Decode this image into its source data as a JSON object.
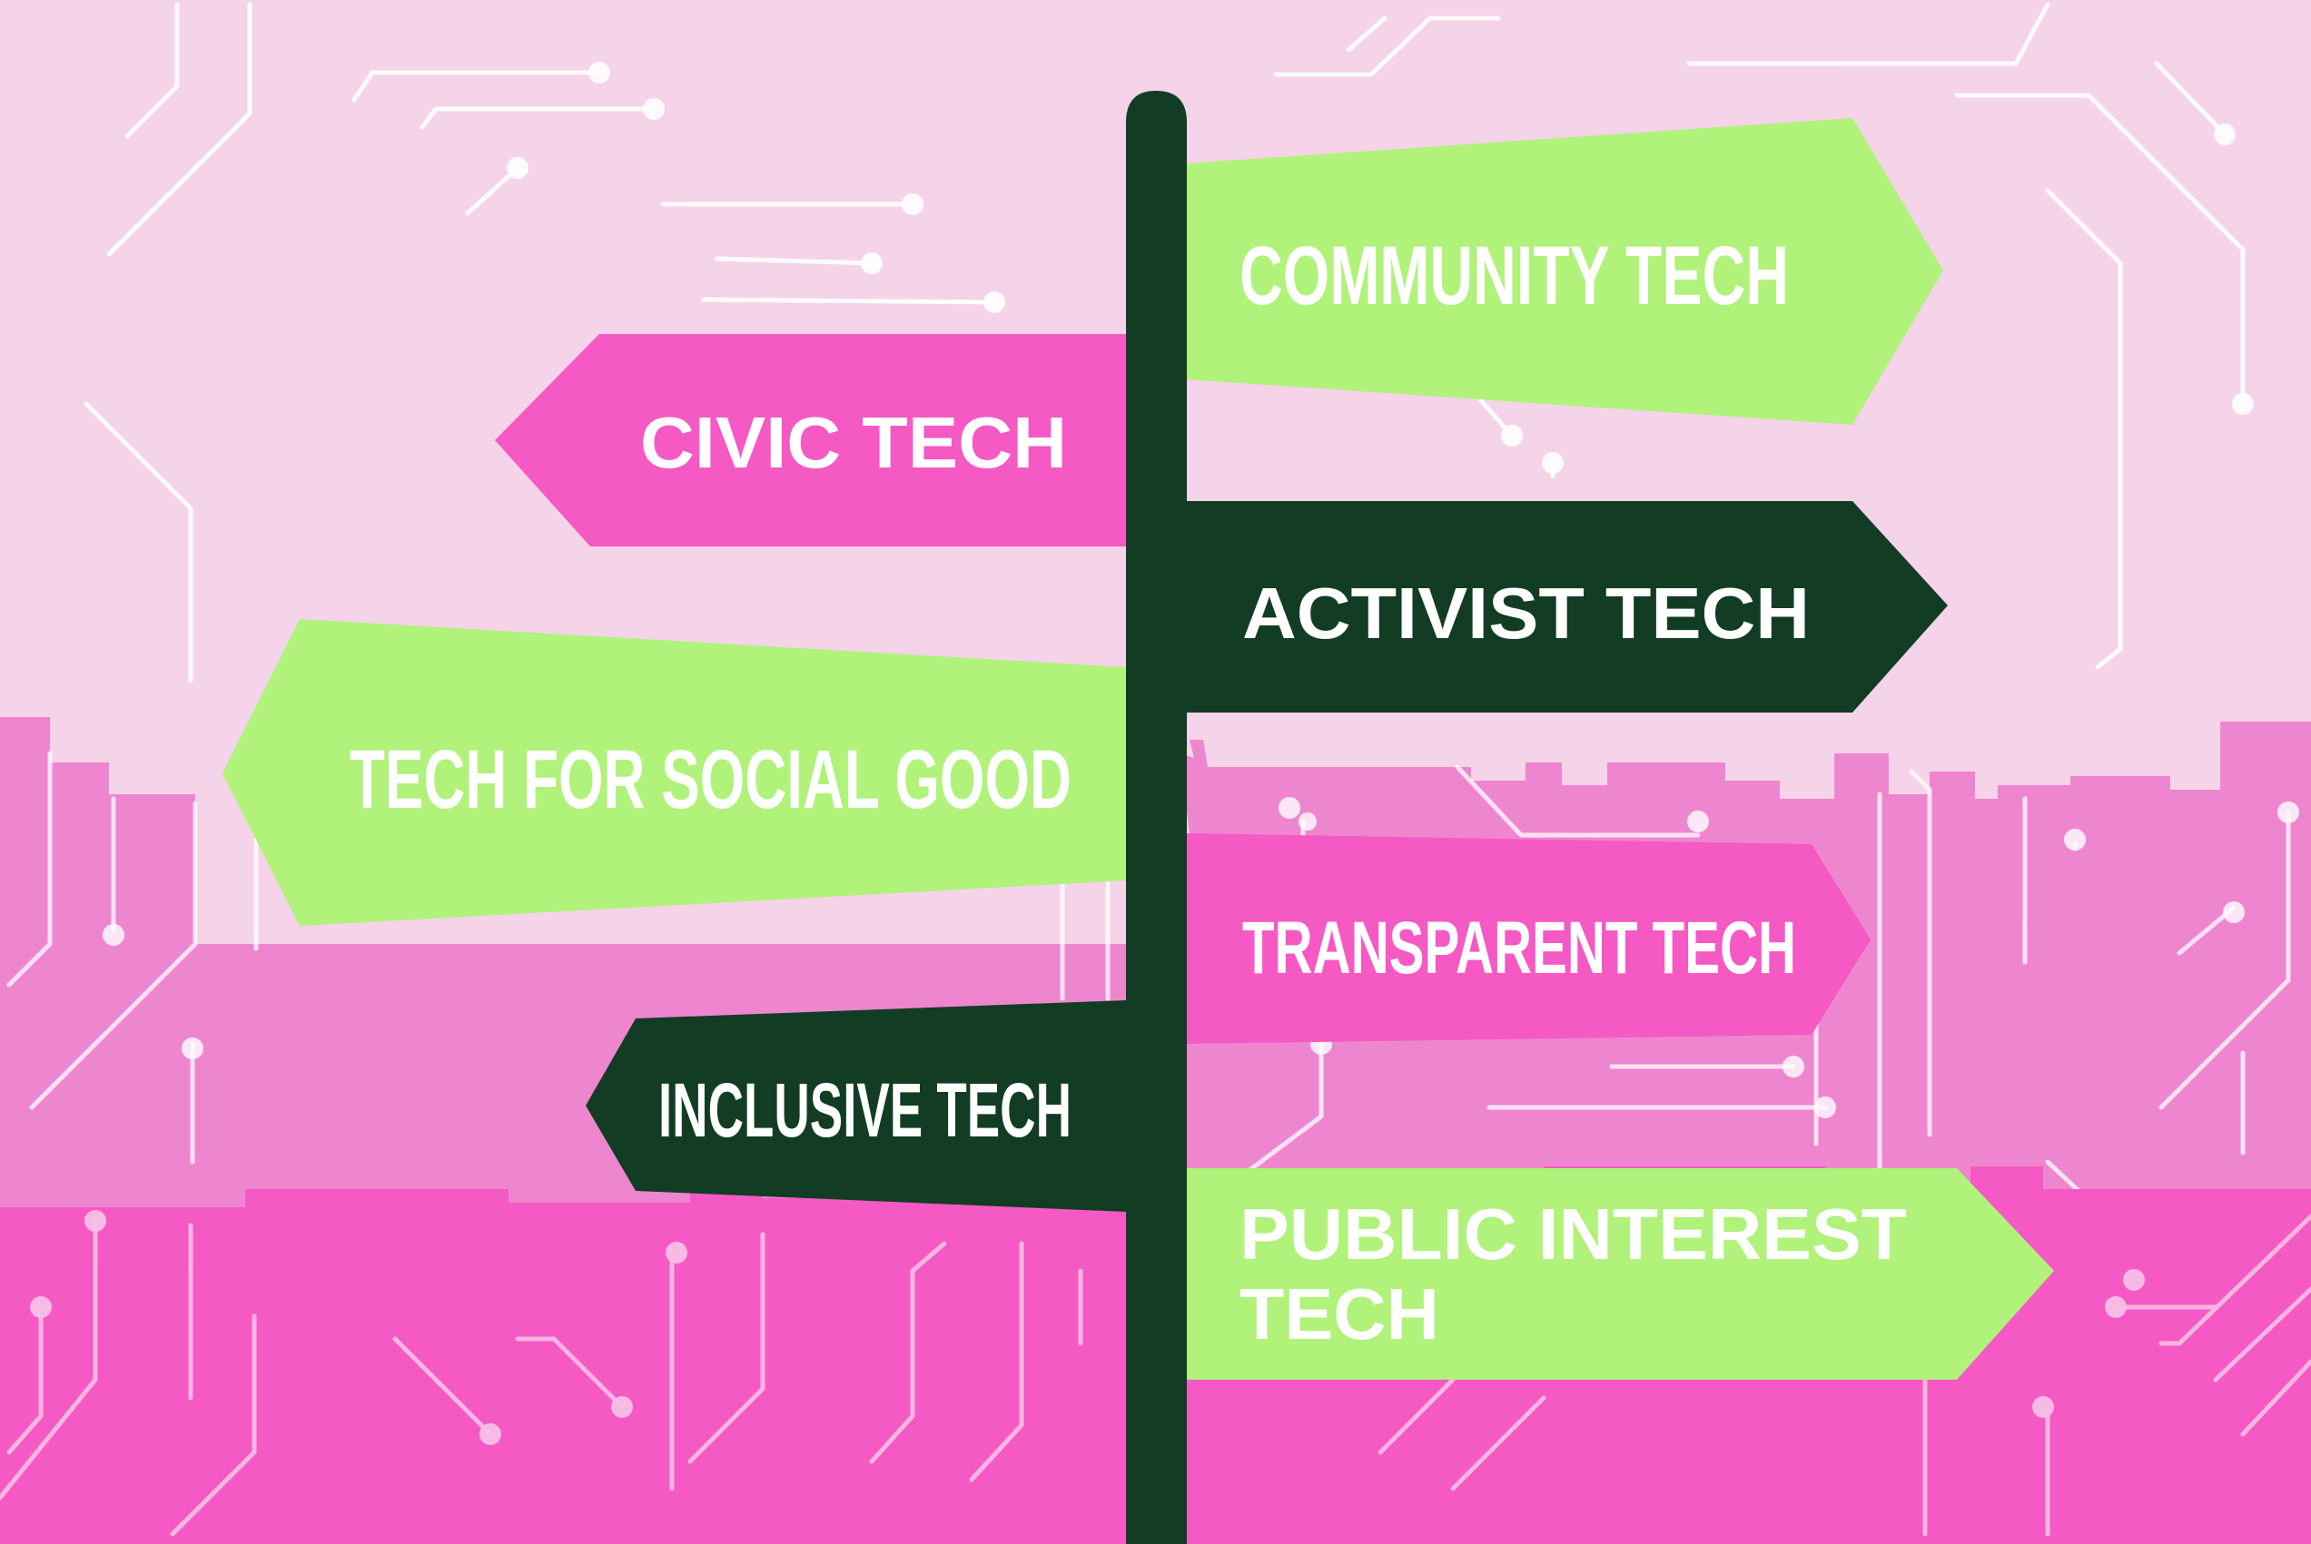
{
  "colors": {
    "sky": "#f5d3e8",
    "city_mid": "#ee86cf",
    "city_front": "#f559c4",
    "circuit_line": "#ffffff",
    "post": "#123d24",
    "sign_green": "#b0f27a",
    "sign_pink": "#f559c4",
    "sign_dark": "#123d24",
    "sign_text": "#ffffff"
  },
  "signpost": {
    "signs": [
      {
        "label": "COMMUNITY TECH",
        "direction": "right",
        "color": "green",
        "icon": "arrow-right-sign"
      },
      {
        "label": "CIVIC TECH",
        "direction": "left",
        "color": "pink",
        "icon": "arrow-left-sign"
      },
      {
        "label": "ACTIVIST TECH",
        "direction": "right",
        "color": "dark-green",
        "icon": "arrow-right-sign"
      },
      {
        "label": "TECH FOR SOCIAL GOOD",
        "direction": "left",
        "color": "green",
        "icon": "arrow-left-sign"
      },
      {
        "label": "TRANSPARENT TECH",
        "direction": "right",
        "color": "pink",
        "icon": "arrow-right-sign"
      },
      {
        "label": "INCLUSIVE TECH",
        "direction": "left",
        "color": "dark-green",
        "icon": "arrow-left-sign"
      },
      {
        "label_line1": "PUBLIC INTEREST",
        "label_line2": "TECH",
        "direction": "right",
        "color": "green",
        "icon": "arrow-right-sign"
      }
    ]
  },
  "background": {
    "icon": "circuit-board-pattern",
    "skyline_icon": "city-skyline"
  }
}
